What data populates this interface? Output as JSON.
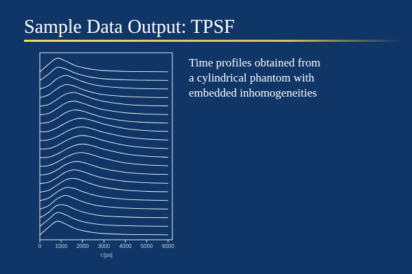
{
  "slide": {
    "title": "Sample Data Output: TPSF",
    "text": [
      "Time profiles obtained from",
      "a cylindrical phantom with",
      "embedded inhomogeneities"
    ]
  },
  "chart_data": {
    "type": "line",
    "xlabel": "t [ps]",
    "x": [
      0,
      400,
      800,
      1200,
      1600,
      2000,
      2500,
      3000,
      4000,
      5000,
      6000
    ],
    "xlim": [
      0,
      6200
    ],
    "xticks": [
      0,
      1000,
      2000,
      3000,
      4000,
      5000,
      6000
    ],
    "color": "#ffffff",
    "series": [
      {
        "values": [
          0,
          0.55,
          1.0,
          0.8,
          0.5,
          0.32,
          0.18,
          0.1,
          0.04,
          0.02,
          0.01
        ]
      },
      {
        "values": [
          0,
          0.45,
          0.95,
          0.85,
          0.58,
          0.38,
          0.22,
          0.12,
          0.05,
          0.02,
          0.01
        ]
      },
      {
        "values": [
          0,
          0.25,
          0.75,
          1.0,
          0.8,
          0.55,
          0.33,
          0.2,
          0.08,
          0.03,
          0.01
        ]
      },
      {
        "values": [
          0,
          0.2,
          0.65,
          0.95,
          0.85,
          0.6,
          0.37,
          0.22,
          0.09,
          0.03,
          0.01
        ]
      },
      {
        "values": [
          0,
          0.12,
          0.5,
          0.88,
          1.0,
          0.82,
          0.55,
          0.35,
          0.14,
          0.05,
          0.02
        ]
      },
      {
        "values": [
          0,
          0.1,
          0.45,
          0.85,
          1.0,
          0.85,
          0.58,
          0.37,
          0.15,
          0.06,
          0.02
        ]
      },
      {
        "values": [
          0,
          0.08,
          0.38,
          0.78,
          0.98,
          0.9,
          0.65,
          0.43,
          0.18,
          0.07,
          0.03
        ]
      },
      {
        "values": [
          0,
          0.05,
          0.3,
          0.65,
          0.92,
          1.0,
          0.82,
          0.58,
          0.25,
          0.1,
          0.04
        ]
      },
      {
        "values": [
          0,
          0.05,
          0.28,
          0.62,
          0.9,
          1.0,
          0.84,
          0.6,
          0.27,
          0.11,
          0.04
        ]
      },
      {
        "values": [
          0,
          0.04,
          0.26,
          0.6,
          0.88,
          1.0,
          0.86,
          0.62,
          0.28,
          0.11,
          0.04
        ]
      },
      {
        "values": [
          0,
          0.04,
          0.26,
          0.6,
          0.88,
          1.0,
          0.86,
          0.62,
          0.28,
          0.11,
          0.04
        ]
      },
      {
        "values": [
          0,
          0.05,
          0.3,
          0.65,
          0.92,
          1.0,
          0.82,
          0.58,
          0.25,
          0.1,
          0.04
        ]
      },
      {
        "values": [
          0,
          0.07,
          0.36,
          0.75,
          0.97,
          0.92,
          0.68,
          0.45,
          0.19,
          0.07,
          0.03
        ]
      },
      {
        "values": [
          0,
          0.09,
          0.42,
          0.82,
          1.0,
          0.87,
          0.6,
          0.39,
          0.16,
          0.06,
          0.02
        ]
      },
      {
        "values": [
          0,
          0.12,
          0.5,
          0.88,
          1.0,
          0.82,
          0.55,
          0.35,
          0.14,
          0.05,
          0.02
        ]
      },
      {
        "values": [
          0,
          0.18,
          0.62,
          0.95,
          0.9,
          0.66,
          0.42,
          0.26,
          0.1,
          0.04,
          0.01
        ]
      },
      {
        "values": [
          0,
          0.25,
          0.75,
          1.0,
          0.8,
          0.55,
          0.33,
          0.2,
          0.08,
          0.03,
          0.01
        ]
      },
      {
        "values": [
          0,
          0.38,
          0.9,
          0.92,
          0.65,
          0.43,
          0.25,
          0.14,
          0.06,
          0.02,
          0.01
        ]
      },
      {
        "values": [
          0,
          0.5,
          1.0,
          0.85,
          0.55,
          0.35,
          0.2,
          0.11,
          0.05,
          0.02,
          0.01
        ]
      },
      {
        "values": [
          0,
          0.55,
          1.0,
          0.8,
          0.5,
          0.32,
          0.18,
          0.1,
          0.04,
          0.02,
          0.01
        ]
      }
    ]
  }
}
